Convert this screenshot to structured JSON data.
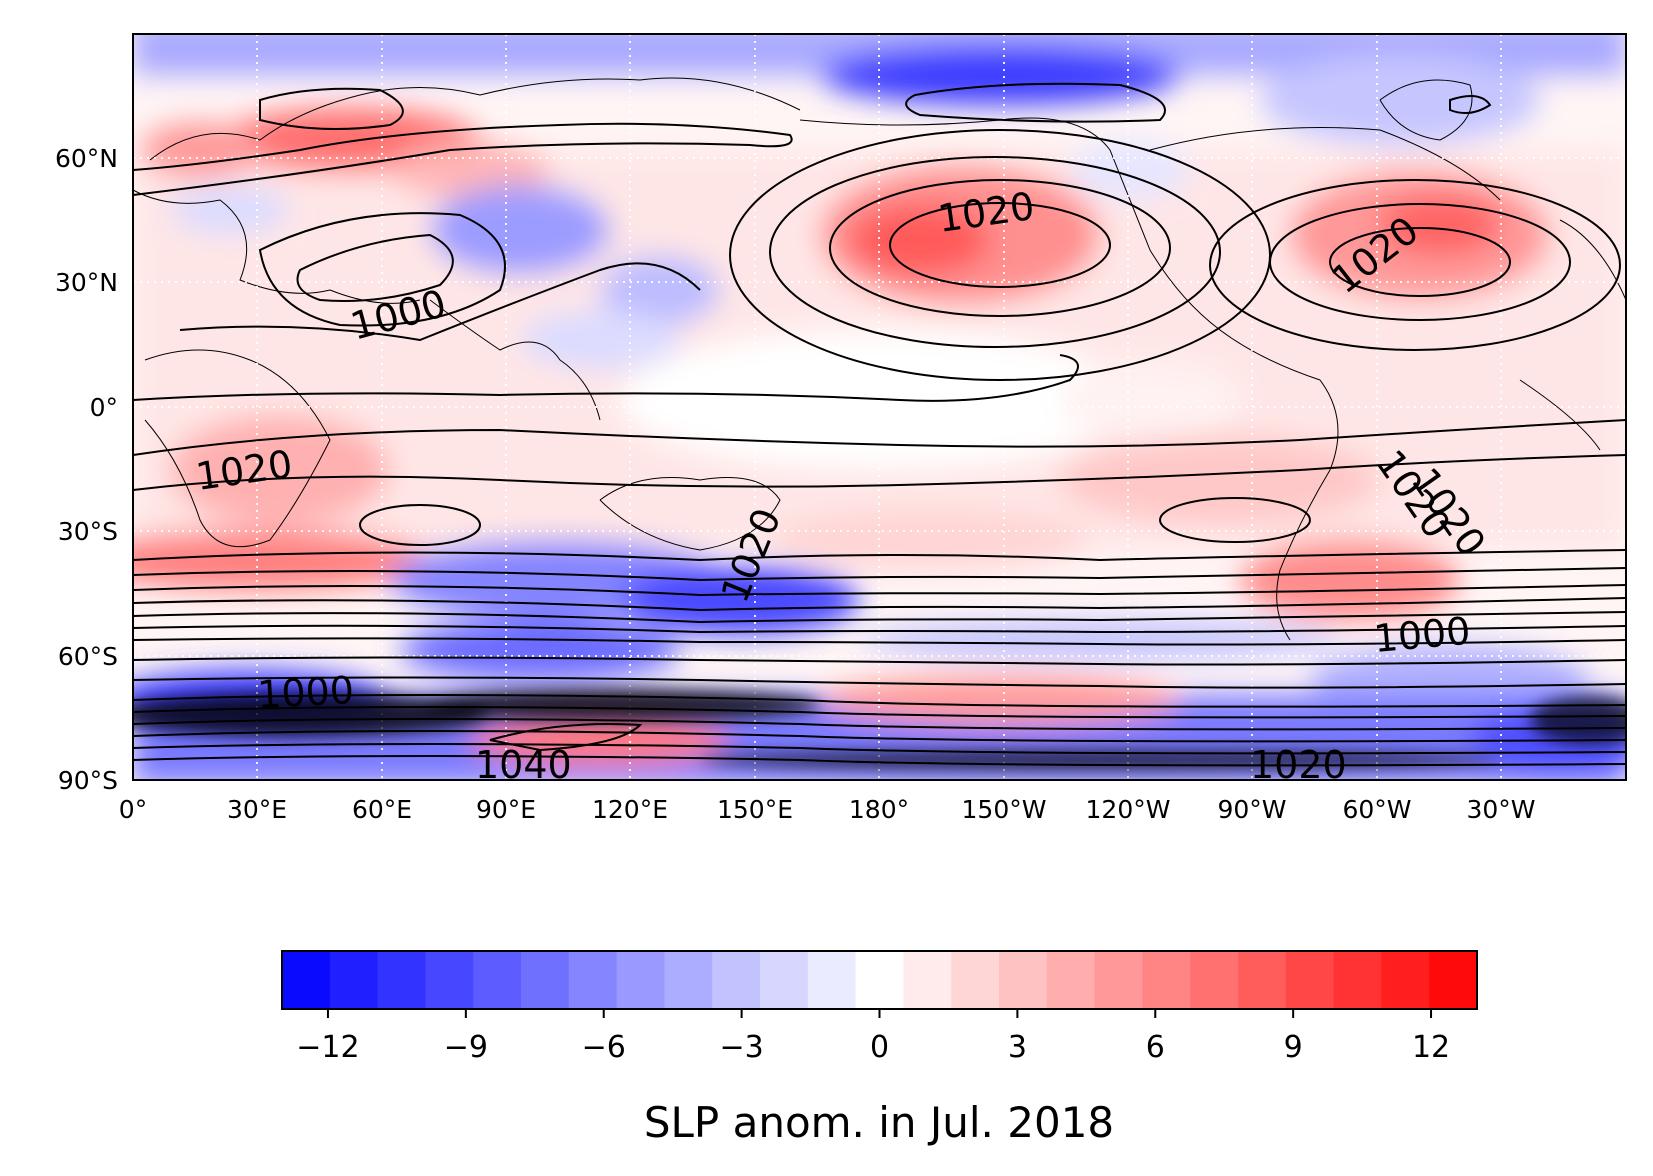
{
  "map": {
    "projection": "PlateCarree, central longitude 180°",
    "field": "sea level pressure anomaly (shaded) with SLP contours (lines)",
    "gridlines": "dotted white",
    "lon_ticks": [
      "0°",
      "30°E",
      "60°E",
      "90°E",
      "120°E",
      "150°E",
      "180°",
      "150°W",
      "120°W",
      "90°W",
      "60°W",
      "30°W"
    ],
    "lat_ticks": [
      "60°N",
      "30°N",
      "0°",
      "30°S",
      "60°S",
      "90°S"
    ],
    "contour_labels": [
      "1020",
      "1000",
      "1020",
      "1020",
      "1020",
      "1020",
      "1020",
      "1000",
      "1000",
      "1040",
      "1020"
    ]
  },
  "colorbar": {
    "label": "SLP anom. in Jul. 2018",
    "ticks": [
      "−12",
      "−9",
      "−6",
      "−3",
      "0",
      "3",
      "6",
      "9",
      "12"
    ],
    "range": [
      -13,
      13
    ],
    "colormap": "bwr",
    "low_color": "#0000ff",
    "mid_color": "#ffffff",
    "high_color": "#ff0000"
  }
}
